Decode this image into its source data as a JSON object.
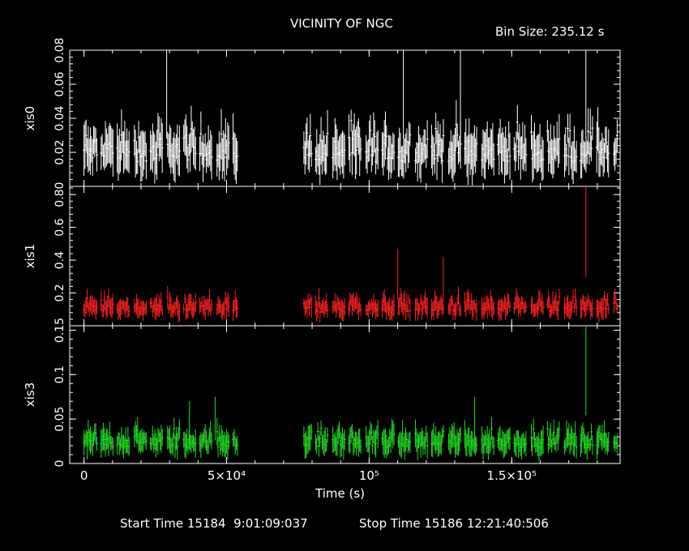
{
  "header": {
    "title": "VICINITY OF NGC",
    "bin_size": "Bin Size: 235.12 s"
  },
  "footer": {
    "start_time": "Start Time 15184  9:01:09:037",
    "stop_time": "Stop Time 15186 12:21:40:506"
  },
  "colors": {
    "xis0": "#ffffff",
    "xis1": "#ff2020",
    "xis3": "#20e020",
    "background": "#000000"
  },
  "chart_data": {
    "type": "line",
    "xlabel": "Time (s)",
    "xlim": [
      -5000,
      188000
    ],
    "x_ticks": [
      {
        "value": 0,
        "label": "0"
      },
      {
        "value": 50000,
        "label": "5×10⁴"
      },
      {
        "value": 100000,
        "label": "10⁵"
      },
      {
        "value": 150000,
        "label": "1.5×10⁵"
      }
    ],
    "observation_gaps": [
      [
        54000,
        77000
      ]
    ],
    "time_range": [
      0,
      187000
    ],
    "panels": [
      {
        "series": "xis0",
        "ylabel": "xis0",
        "ylim": [
          0,
          0.08
        ],
        "y_ticks": [
          {
            "value": 0.02,
            "label": "0.02"
          },
          {
            "value": 0.04,
            "label": "0.04"
          },
          {
            "value": 0.06,
            "label": "0.06"
          },
          {
            "value": 0.08,
            "label": "0.08"
          }
        ],
        "typical_rate": [
          0.005,
          0.04
        ],
        "peak_points": [
          [
            29000,
            0.08
          ],
          [
            112000,
            0.08
          ],
          [
            132000,
            0.08
          ],
          [
            176000,
            0.08
          ]
        ]
      },
      {
        "series": "xis1",
        "ylabel": "xis1",
        "ylim": [
          0,
          0.85
        ],
        "y_ticks": [
          {
            "value": 0.2,
            "label": "0.2"
          },
          {
            "value": 0.4,
            "label": "0.4"
          },
          {
            "value": 0.6,
            "label": "0.6"
          },
          {
            "value": 0.8,
            "label": "0.80"
          }
        ],
        "typical_rate": [
          0.04,
          0.2
        ],
        "peak_points": [
          [
            110000,
            0.47
          ],
          [
            126000,
            0.42
          ],
          [
            176000,
            0.85
          ]
        ]
      },
      {
        "series": "xis3",
        "ylabel": "xis3",
        "ylim": [
          0,
          0.155
        ],
        "y_ticks": [
          {
            "value": 0,
            "label": "0"
          },
          {
            "value": 0.05,
            "label": "0.05"
          },
          {
            "value": 0.1,
            "label": "0.1"
          },
          {
            "value": 0.15,
            "label": "0.15"
          }
        ],
        "typical_rate": [
          0.008,
          0.045
        ],
        "peak_points": [
          [
            37000,
            0.07
          ],
          [
            46000,
            0.075
          ],
          [
            137000,
            0.075
          ],
          [
            176000,
            0.155
          ]
        ]
      }
    ]
  }
}
